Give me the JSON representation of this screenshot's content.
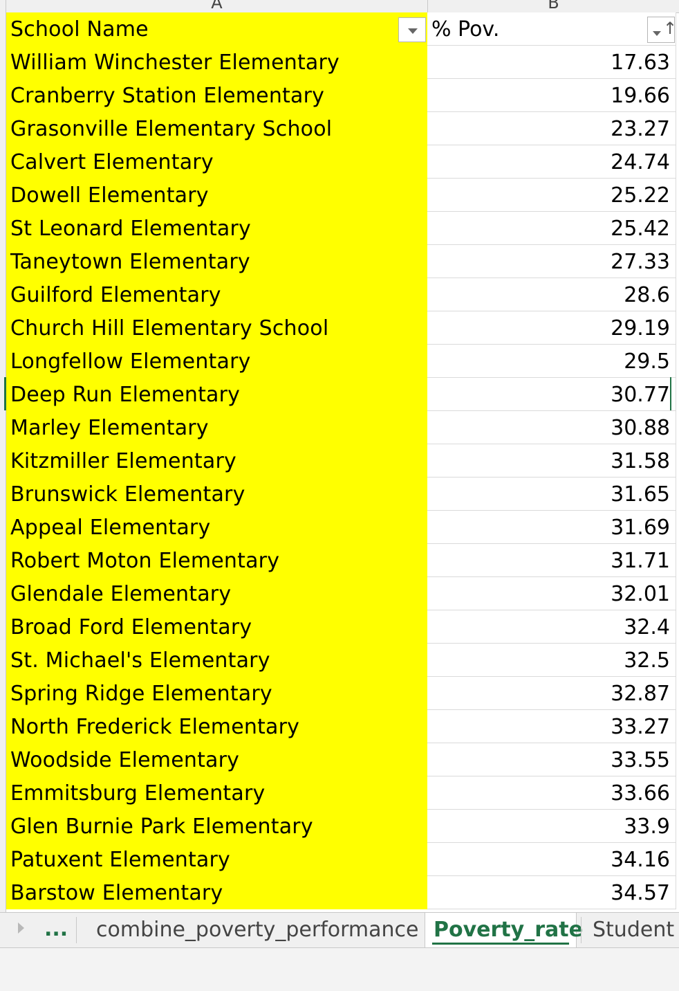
{
  "columns": {
    "a": "A",
    "b": "B"
  },
  "header": {
    "school_name": "School Name",
    "pov": "% Pov."
  },
  "rows": [
    {
      "school": "William Winchester Elementary",
      "pov": "17.63"
    },
    {
      "school": "Cranberry Station Elementary",
      "pov": "19.66"
    },
    {
      "school": "Grasonville Elementary School",
      "pov": "23.27"
    },
    {
      "school": "Calvert Elementary",
      "pov": "24.74"
    },
    {
      "school": "Dowell Elementary",
      "pov": "25.22"
    },
    {
      "school": "St Leonard Elementary",
      "pov": "25.42"
    },
    {
      "school": "Taneytown Elementary",
      "pov": "27.33"
    },
    {
      "school": "Guilford Elementary",
      "pov": "28.6"
    },
    {
      "school": "Church Hill Elementary School",
      "pov": "29.19"
    },
    {
      "school": "Longfellow Elementary",
      "pov": "29.5"
    },
    {
      "school": "Deep Run Elementary",
      "pov": "30.77"
    },
    {
      "school": "Marley Elementary",
      "pov": "30.88"
    },
    {
      "school": "Kitzmiller Elementary",
      "pov": "31.58"
    },
    {
      "school": "Brunswick Elementary",
      "pov": "31.65"
    },
    {
      "school": "Appeal Elementary",
      "pov": "31.69"
    },
    {
      "school": "Robert Moton Elementary",
      "pov": "31.71"
    },
    {
      "school": "Glendale Elementary",
      "pov": "32.01"
    },
    {
      "school": "Broad Ford Elementary",
      "pov": "32.4"
    },
    {
      "school": "St. Michael's Elementary",
      "pov": "32.5"
    },
    {
      "school": "Spring Ridge Elementary",
      "pov": "32.87"
    },
    {
      "school": "North Frederick Elementary",
      "pov": "33.27"
    },
    {
      "school": "Woodside Elementary",
      "pov": "33.55"
    },
    {
      "school": "Emmitsburg Elementary",
      "pov": "33.66"
    },
    {
      "school": "Glen Burnie Park Elementary",
      "pov": "33.9"
    },
    {
      "school": "Patuxent Elementary",
      "pov": "34.16"
    },
    {
      "school": "Barstow Elementary",
      "pov": "34.57"
    }
  ],
  "tabs": {
    "more": "...",
    "combine": "combine_poverty_performance",
    "poverty": "Poverty_rate",
    "student": "Student"
  },
  "colors": {
    "highlight": "#ffff00",
    "accent": "#217346"
  },
  "icons": {
    "filter": "dropdown-filter-icon",
    "sort": "sort-ascending-filter-icon",
    "nav": "scroll-left-icon"
  }
}
